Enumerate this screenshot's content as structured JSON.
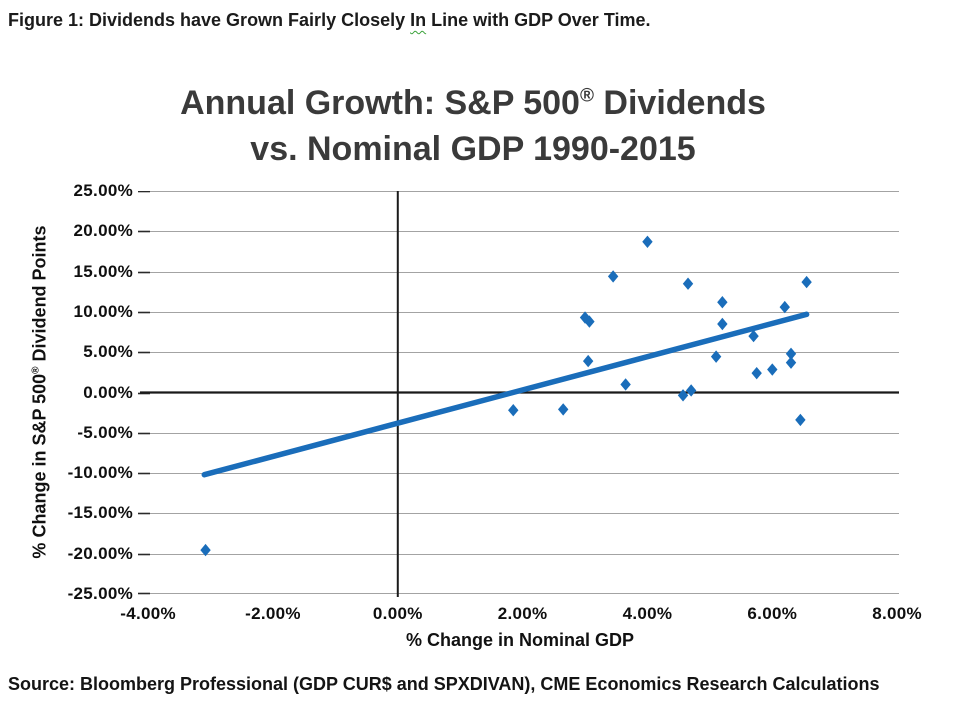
{
  "caption": {
    "part1": "Figure 1: Dividends have Grown Fairly Closely ",
    "word": "In",
    "part2": " Line with GDP Over Time."
  },
  "chart": {
    "title_line1_pre": "Annual Growth: S&P 500",
    "title_reg": "®",
    "title_line1_post": " Dividends",
    "title_line2": "vs. Nominal GDP 1990-2015"
  },
  "axes": {
    "y_title_pre": "% Change in S&P 500",
    "y_title_reg": "®",
    "y_title_post": " Dividend Points",
    "x_title": "% Change in Nominal GDP"
  },
  "source": "Source: Bloomberg Professional (GDP CUR$ and SPXDIVAN), CME Economics Research Calculations",
  "chart_data": {
    "type": "scatter",
    "title": "Annual Growth: S&P 500® Dividends vs. Nominal GDP 1990-2015",
    "xlabel": "% Change in Nominal GDP",
    "ylabel": "% Change in S&P 500® Dividend Points",
    "xlim": [
      -4.13,
      8.03
    ],
    "ylim": [
      -25,
      25
    ],
    "grid": "horizontal-only",
    "legend": "none",
    "x_ticks": {
      "values": [
        -4,
        -2,
        0,
        2,
        4,
        6,
        8
      ],
      "labels": [
        "-4.00%",
        "-2.00%",
        "0.00%",
        "2.00%",
        "4.00%",
        "6.00%",
        "8.00%"
      ]
    },
    "y_ticks": {
      "values": [
        25,
        20,
        15,
        10,
        5,
        0,
        -5,
        -10,
        -15,
        -20,
        -25
      ],
      "labels": [
        "25.00%",
        "20.00%",
        "15.00%",
        "10.00%",
        "5.00%",
        "0.00%",
        "-5.00%",
        "-10.00%",
        "-15.00%",
        "-20.00%",
        "-25.00%"
      ]
    },
    "points_pct": [
      [
        -3.08,
        -19.55
      ],
      [
        1.85,
        -2.2
      ],
      [
        2.65,
        -2.1
      ],
      [
        3.0,
        9.3
      ],
      [
        3.07,
        8.8
      ],
      [
        3.05,
        3.9
      ],
      [
        3.45,
        14.4
      ],
      [
        3.65,
        1.0
      ],
      [
        4.0,
        18.7
      ],
      [
        4.57,
        -0.35
      ],
      [
        4.7,
        0.25
      ],
      [
        4.65,
        13.5
      ],
      [
        5.1,
        4.45
      ],
      [
        5.2,
        11.2
      ],
      [
        5.2,
        8.5
      ],
      [
        5.7,
        7.0
      ],
      [
        5.75,
        2.4
      ],
      [
        6.0,
        2.85
      ],
      [
        6.2,
        10.6
      ],
      [
        6.3,
        4.8
      ],
      [
        6.3,
        3.7
      ],
      [
        6.55,
        13.7
      ],
      [
        6.45,
        -3.4
      ]
    ],
    "trendline": {
      "x1": -3.1,
      "y1": -10.2,
      "x2": 6.55,
      "y2": 9.7
    },
    "colors": {
      "marker": "#1a6dba",
      "trend": "#1a6dba",
      "gridline": "#a3a3a3",
      "axis": "#1a1a1a"
    }
  }
}
